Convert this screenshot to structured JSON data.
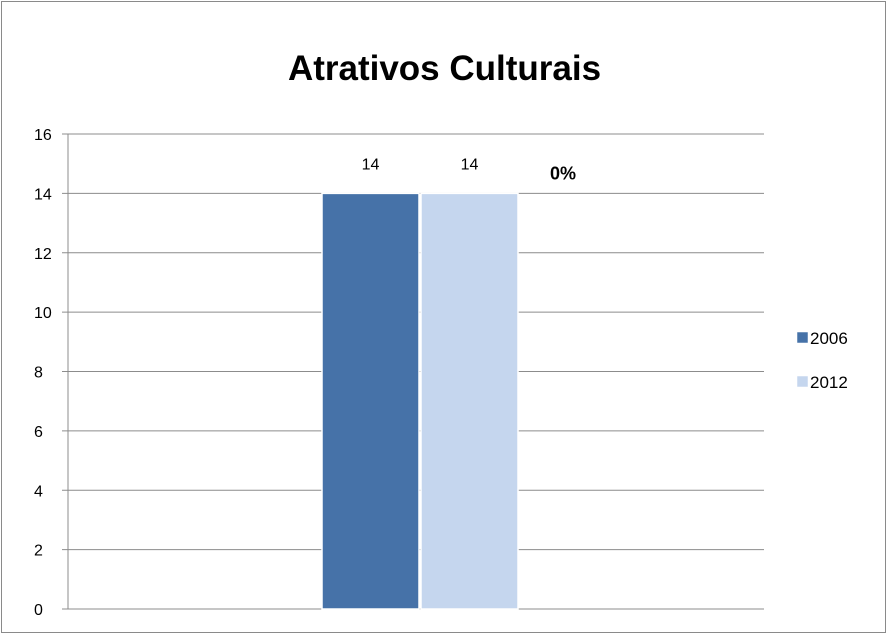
{
  "chart_data": {
    "type": "bar",
    "title": "Atrativos Culturais",
    "categories": [
      ""
    ],
    "series": [
      {
        "name": "2006",
        "values": [
          14
        ],
        "color": "#4672A8"
      },
      {
        "name": "2012",
        "values": [
          14
        ],
        "color": "#C5D6EE"
      }
    ],
    "data_labels": [
      "14",
      "14"
    ],
    "annotation": "0%",
    "ylim": [
      0,
      16
    ],
    "yticks": [
      0,
      2,
      4,
      6,
      8,
      10,
      12,
      14,
      16
    ],
    "grid": true,
    "legend_position": "right"
  }
}
